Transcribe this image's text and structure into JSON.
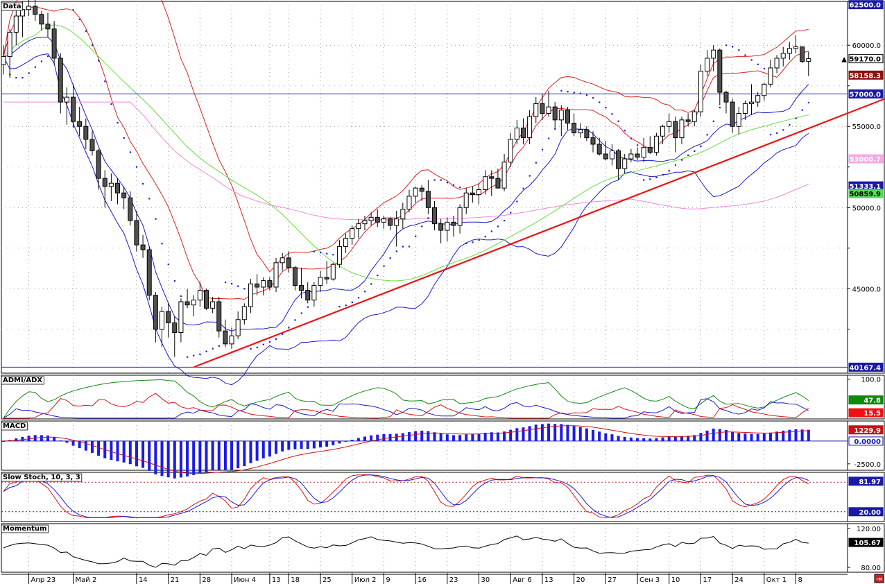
{
  "panels": {
    "price": {
      "label": "Data"
    },
    "adx": {
      "label": "ADMI/ADX"
    },
    "macd": {
      "label": "MACD"
    },
    "stoch": {
      "label": "Slow Stoch, 10, 3, 3"
    },
    "mom": {
      "label": "Momentum"
    }
  },
  "price_axis": {
    "ticks": [
      {
        "value": 60000,
        "label": "60000.0"
      },
      {
        "value": 55000,
        "label": "55000.0"
      },
      {
        "value": 50000,
        "label": "50000.0"
      },
      {
        "value": 45000,
        "label": "45000.0"
      }
    ],
    "badges": [
      {
        "value": 62500,
        "label": "62500.0",
        "bg": "#1a1aa8",
        "fg": "#ffffff"
      },
      {
        "value": 59170,
        "label": "▲ 59170.0",
        "bg": "#ffffff",
        "fg": "#000000",
        "border": "#000000"
      },
      {
        "value": 58158.3,
        "label": "58158.3",
        "bg": "#8b1010",
        "fg": "#ffffff"
      },
      {
        "value": 57000,
        "label": "57000.0",
        "bg": "#1a1aa8",
        "fg": "#ffffff"
      },
      {
        "value": 53000.7,
        "label": "53000.7",
        "bg": "#f2a8e8",
        "fg": "#ffffff"
      },
      {
        "value": 51333.1,
        "label": "51333.1",
        "bg": "#1a1aa8",
        "fg": "#ffffff"
      },
      {
        "value": 50859.9,
        "label": "50859.9",
        "bg": "#55dd55",
        "fg": "#000000"
      },
      {
        "value": 40167.4,
        "label": "40167.4",
        "bg": "#1a1aa8",
        "fg": "#ffffff"
      }
    ]
  },
  "adx_axis": {
    "ticks": [
      {
        "value": 100,
        "label": "100.0"
      }
    ],
    "badges": [
      {
        "value": 47.8,
        "label": "47.8",
        "bg": "#118811",
        "fg": "#ffffff"
      },
      {
        "value": 15.5,
        "label": "15.5",
        "bg": "#ee1111",
        "fg": "#ffffff"
      }
    ]
  },
  "macd_axis": {
    "ticks": [
      {
        "value": -2500,
        "label": "-2500.0"
      }
    ],
    "badges": [
      {
        "value": 1229.9,
        "label": "1229.9",
        "bg": "#cc1111",
        "fg": "#ffffff"
      },
      {
        "value": 0,
        "label": "0.0000",
        "bg": "#ffffff",
        "fg": "#1a1aa8",
        "border": "#1a1aa8"
      }
    ]
  },
  "stoch_axis": {
    "badges": [
      {
        "value": 81.97,
        "label": "81.97",
        "bg": "#1a1aa8",
        "fg": "#ffffff"
      },
      {
        "value": 20,
        "label": "20.00",
        "bg": "#1a1aa8",
        "fg": "#ffffff"
      }
    ]
  },
  "mom_axis": {
    "ticks": [
      {
        "value": 120,
        "label": "120.00"
      },
      {
        "value": 80,
        "label": "80.00"
      }
    ],
    "badges": [
      {
        "value": 105.67,
        "label": "105.67",
        "bg": "#000000",
        "fg": "#ffffff"
      }
    ]
  },
  "date_axis": {
    "labels": [
      {
        "text": "Апр 23",
        "i": 4
      },
      {
        "text": "Май 2",
        "i": 11
      },
      {
        "text": "14",
        "i": 21
      },
      {
        "text": "21",
        "i": 26
      },
      {
        "text": "28",
        "i": 31
      },
      {
        "text": "Июн 4",
        "i": 36
      },
      {
        "text": "13",
        "i": 42
      },
      {
        "text": "18",
        "i": 45
      },
      {
        "text": "25",
        "i": 50
      },
      {
        "text": "Июл 2",
        "i": 55
      },
      {
        "text": "9",
        "i": 60
      },
      {
        "text": "16",
        "i": 65
      },
      {
        "text": "23",
        "i": 70
      },
      {
        "text": "30",
        "i": 75
      },
      {
        "text": "Авг 6",
        "i": 80
      },
      {
        "text": "13",
        "i": 85
      },
      {
        "text": "20",
        "i": 90
      },
      {
        "text": "27",
        "i": 95
      },
      {
        "text": "Сен 3",
        "i": 100
      },
      {
        "text": "10",
        "i": 105
      },
      {
        "text": "17",
        "i": 110
      },
      {
        "text": "24",
        "i": 115
      },
      {
        "text": "Окт 1",
        "i": 120
      },
      {
        "text": "8",
        "i": 125
      }
    ]
  },
  "chart_data": {
    "type": "candlestick",
    "ylim": [
      39800,
      62700
    ],
    "candles": [
      [
        58800,
        60000,
        58200,
        59300
      ],
      [
        59300,
        61000,
        58000,
        60800
      ],
      [
        60800,
        62500,
        60000,
        61800
      ],
      [
        61800,
        62700,
        60500,
        62200
      ],
      [
        62200,
        63000,
        61800,
        62400
      ],
      [
        62400,
        63000,
        61500,
        61900
      ],
      [
        61900,
        62100,
        60900,
        61300
      ],
      [
        61300,
        62000,
        60500,
        61000
      ],
      [
        61000,
        61500,
        58800,
        59200
      ],
      [
        59200,
        59500,
        55800,
        56500
      ],
      [
        56500,
        57400,
        55100,
        56800
      ],
      [
        56800,
        57600,
        54900,
        55300
      ],
      [
        55300,
        56200,
        54400,
        55000
      ],
      [
        55000,
        55500,
        53600,
        54200
      ],
      [
        54200,
        54700,
        53200,
        53500
      ],
      [
        53500,
        53600,
        51100,
        51800
      ],
      [
        51800,
        52300,
        50000,
        51300
      ],
      [
        51300,
        52100,
        50400,
        51500
      ],
      [
        51500,
        51800,
        50200,
        50900
      ],
      [
        50900,
        51300,
        49900,
        50600
      ],
      [
        50600,
        51000,
        48900,
        49200
      ],
      [
        49200,
        49800,
        47300,
        47700
      ],
      [
        47700,
        48300,
        46900,
        47400
      ],
      [
        47400,
        47600,
        44300,
        44600
      ],
      [
        44600,
        44800,
        41700,
        42500
      ],
      [
        42500,
        43900,
        41400,
        43600
      ],
      [
        43600,
        44100,
        42000,
        42900
      ],
      [
        42900,
        43300,
        40800,
        42300
      ],
      [
        42300,
        44400,
        41700,
        44200
      ],
      [
        44200,
        45000,
        43800,
        44000
      ],
      [
        44000,
        44600,
        43300,
        44300
      ],
      [
        44300,
        45400,
        43900,
        44900
      ],
      [
        44900,
        45000,
        43700,
        43800
      ],
      [
        43800,
        44500,
        43500,
        44200
      ],
      [
        44200,
        44500,
        42000,
        42400
      ],
      [
        42400,
        43100,
        41400,
        41600
      ],
      [
        41600,
        42600,
        41300,
        42100
      ],
      [
        42100,
        43600,
        41900,
        43100
      ],
      [
        43100,
        44100,
        42800,
        43900
      ],
      [
        43900,
        45600,
        43500,
        45300
      ],
      [
        45300,
        45900,
        44600,
        45100
      ],
      [
        45100,
        45700,
        44600,
        45500
      ],
      [
        45500,
        45700,
        44900,
        45100
      ],
      [
        45100,
        46900,
        44800,
        46600
      ],
      [
        46600,
        47200,
        46100,
        46900
      ],
      [
        46900,
        47300,
        46000,
        46300
      ],
      [
        46300,
        46400,
        44900,
        45200
      ],
      [
        45200,
        46300,
        44400,
        44900
      ],
      [
        44900,
        45400,
        44100,
        44300
      ],
      [
        44300,
        45400,
        43900,
        45200
      ],
      [
        45200,
        46100,
        44800,
        45700
      ],
      [
        45700,
        46700,
        45300,
        45600
      ],
      [
        45600,
        46600,
        45500,
        46500
      ],
      [
        46500,
        48000,
        46300,
        47600
      ],
      [
        47600,
        48400,
        47200,
        48100
      ],
      [
        48100,
        48900,
        47700,
        48700
      ],
      [
        48700,
        49300,
        48100,
        49000
      ],
      [
        49000,
        49500,
        48600,
        49200
      ],
      [
        49200,
        49700,
        48900,
        49400
      ],
      [
        49400,
        49900,
        48800,
        49100
      ],
      [
        49100,
        49500,
        48700,
        49300
      ],
      [
        49300,
        49400,
        48600,
        48900
      ],
      [
        48900,
        49800,
        47600,
        49300
      ],
      [
        49300,
        50300,
        48700,
        49900
      ],
      [
        49900,
        51100,
        49700,
        50700
      ],
      [
        50700,
        51300,
        50300,
        51200
      ],
      [
        51200,
        51400,
        50400,
        51000
      ],
      [
        51000,
        51700,
        49600,
        50000
      ],
      [
        50000,
        50400,
        48600,
        49000
      ],
      [
        49000,
        49300,
        47800,
        48600
      ],
      [
        48600,
        49400,
        47900,
        49100
      ],
      [
        49100,
        49500,
        48200,
        48900
      ],
      [
        48900,
        50200,
        48400,
        50000
      ],
      [
        50000,
        51200,
        49600,
        50900
      ],
      [
        50900,
        51300,
        50300,
        50800
      ],
      [
        50800,
        51500,
        50200,
        51100
      ],
      [
        51100,
        52300,
        50800,
        51900
      ],
      [
        51900,
        52300,
        50700,
        51800
      ],
      [
        51800,
        52400,
        51400,
        51200
      ],
      [
        51200,
        53300,
        51000,
        52800
      ],
      [
        52800,
        54600,
        52500,
        54200
      ],
      [
        54200,
        55400,
        53900,
        54900
      ],
      [
        54900,
        55500,
        53900,
        54300
      ],
      [
        54300,
        56000,
        53900,
        55600
      ],
      [
        55600,
        56800,
        55200,
        56400
      ],
      [
        56400,
        57000,
        55400,
        55800
      ],
      [
        55800,
        57200,
        55600,
        56200
      ],
      [
        56200,
        56500,
        54900,
        55400
      ],
      [
        55400,
        56300,
        54400,
        56000
      ],
      [
        56000,
        56200,
        54800,
        55200
      ],
      [
        55200,
        55800,
        54400,
        54600
      ],
      [
        54600,
        55200,
        54300,
        54800
      ],
      [
        54800,
        55000,
        54100,
        54300
      ],
      [
        54300,
        54700,
        53400,
        53900
      ],
      [
        53900,
        54300,
        53200,
        53300
      ],
      [
        53300,
        54100,
        52900,
        53000
      ],
      [
        53000,
        53900,
        52600,
        53500
      ],
      [
        53500,
        53600,
        51700,
        52400
      ],
      [
        52400,
        53300,
        52100,
        53000
      ],
      [
        53000,
        53600,
        52800,
        53300
      ],
      [
        53300,
        53700,
        52900,
        53100
      ],
      [
        53100,
        54300,
        52800,
        53700
      ],
      [
        53700,
        54400,
        53300,
        53400
      ],
      [
        53400,
        54600,
        53200,
        54400
      ],
      [
        54400,
        55100,
        53900,
        55000
      ],
      [
        55000,
        55800,
        54600,
        55300
      ],
      [
        55300,
        55600,
        53400,
        54300
      ],
      [
        54300,
        55600,
        53900,
        55400
      ],
      [
        55400,
        55800,
        55000,
        55300
      ],
      [
        55300,
        56000,
        55000,
        55900
      ],
      [
        55900,
        58800,
        55600,
        58400
      ],
      [
        58400,
        59700,
        58100,
        59200
      ],
      [
        59200,
        60000,
        58400,
        59700
      ],
      [
        59700,
        59800,
        56300,
        57100
      ],
      [
        57100,
        57200,
        55800,
        56500
      ],
      [
        56500,
        56700,
        54600,
        55000
      ],
      [
        55000,
        56200,
        54500,
        55800
      ],
      [
        55800,
        56600,
        55400,
        56400
      ],
      [
        56400,
        57600,
        55700,
        56500
      ],
      [
        56500,
        57100,
        56200,
        56900
      ],
      [
        56900,
        57700,
        56600,
        57600
      ],
      [
        57600,
        59100,
        57400,
        58600
      ],
      [
        58600,
        59400,
        58300,
        59200
      ],
      [
        59200,
        59900,
        58700,
        59500
      ],
      [
        59500,
        60200,
        59100,
        59800
      ],
      [
        59800,
        60600,
        59500,
        59900
      ],
      [
        59900,
        59900,
        58900,
        59000
      ],
      [
        59000,
        59600,
        58100,
        59170
      ]
    ],
    "trendline": {
      "from": [
        30,
        40167
      ],
      "to": [
        141,
        57000
      ],
      "color": "#ee1111"
    },
    "hlines": [
      {
        "value": 57000,
        "color": "#2020b0"
      },
      {
        "value": 40167.4,
        "color": "#2020b0"
      }
    ],
    "stoch_levels": [
      80,
      20
    ],
    "adx": {
      "ylim": [
        0,
        110
      ]
    },
    "macd": {
      "ylim": [
        -3200,
        2200
      ]
    },
    "momentum": {
      "ylim": [
        75,
        125
      ]
    }
  }
}
